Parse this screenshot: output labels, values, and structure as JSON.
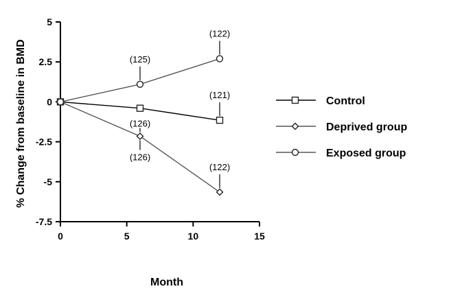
{
  "chart_data": {
    "type": "line",
    "xlabel": "Month",
    "ylabel": "% Change from baseline in BMD",
    "xlim": [
      0,
      15
    ],
    "ylim": [
      -7.5,
      5
    ],
    "x_ticks": [
      0,
      5,
      10,
      15
    ],
    "y_ticks": [
      5,
      2.5,
      0,
      -2.5,
      -5,
      -7.5
    ],
    "x_tick_labels": [
      "0",
      "5",
      "10",
      "15"
    ],
    "y_tick_labels": [
      "5",
      "2.5",
      "0",
      "-2.5",
      "-5",
      "-7.5"
    ],
    "grid": false,
    "legend_position": "right",
    "series": [
      {
        "name": " Control",
        "marker": "square",
        "color": "#000000",
        "x": [
          0,
          6,
          12
        ],
        "y": [
          0,
          -0.4,
          -1.15
        ],
        "n_labels": [
          null,
          null,
          "(121)"
        ]
      },
      {
        "name": "Deprived group",
        "marker": "diamond",
        "color": "#555555",
        "x": [
          0,
          6,
          12
        ],
        "y": [
          0,
          -2.15,
          -5.65
        ],
        "n_labels": [
          null,
          "(126)",
          "(122)"
        ]
      },
      {
        "name": "Exposed group",
        "marker": "circle",
        "color": "#555555",
        "x": [
          0,
          6,
          12
        ],
        "y": [
          0,
          1.1,
          2.7
        ],
        "n_labels": [
          null,
          "(125)",
          "(122)"
        ]
      }
    ],
    "extra_annotations": [
      {
        "text": "(126)",
        "series": 0,
        "point": 1
      }
    ]
  }
}
